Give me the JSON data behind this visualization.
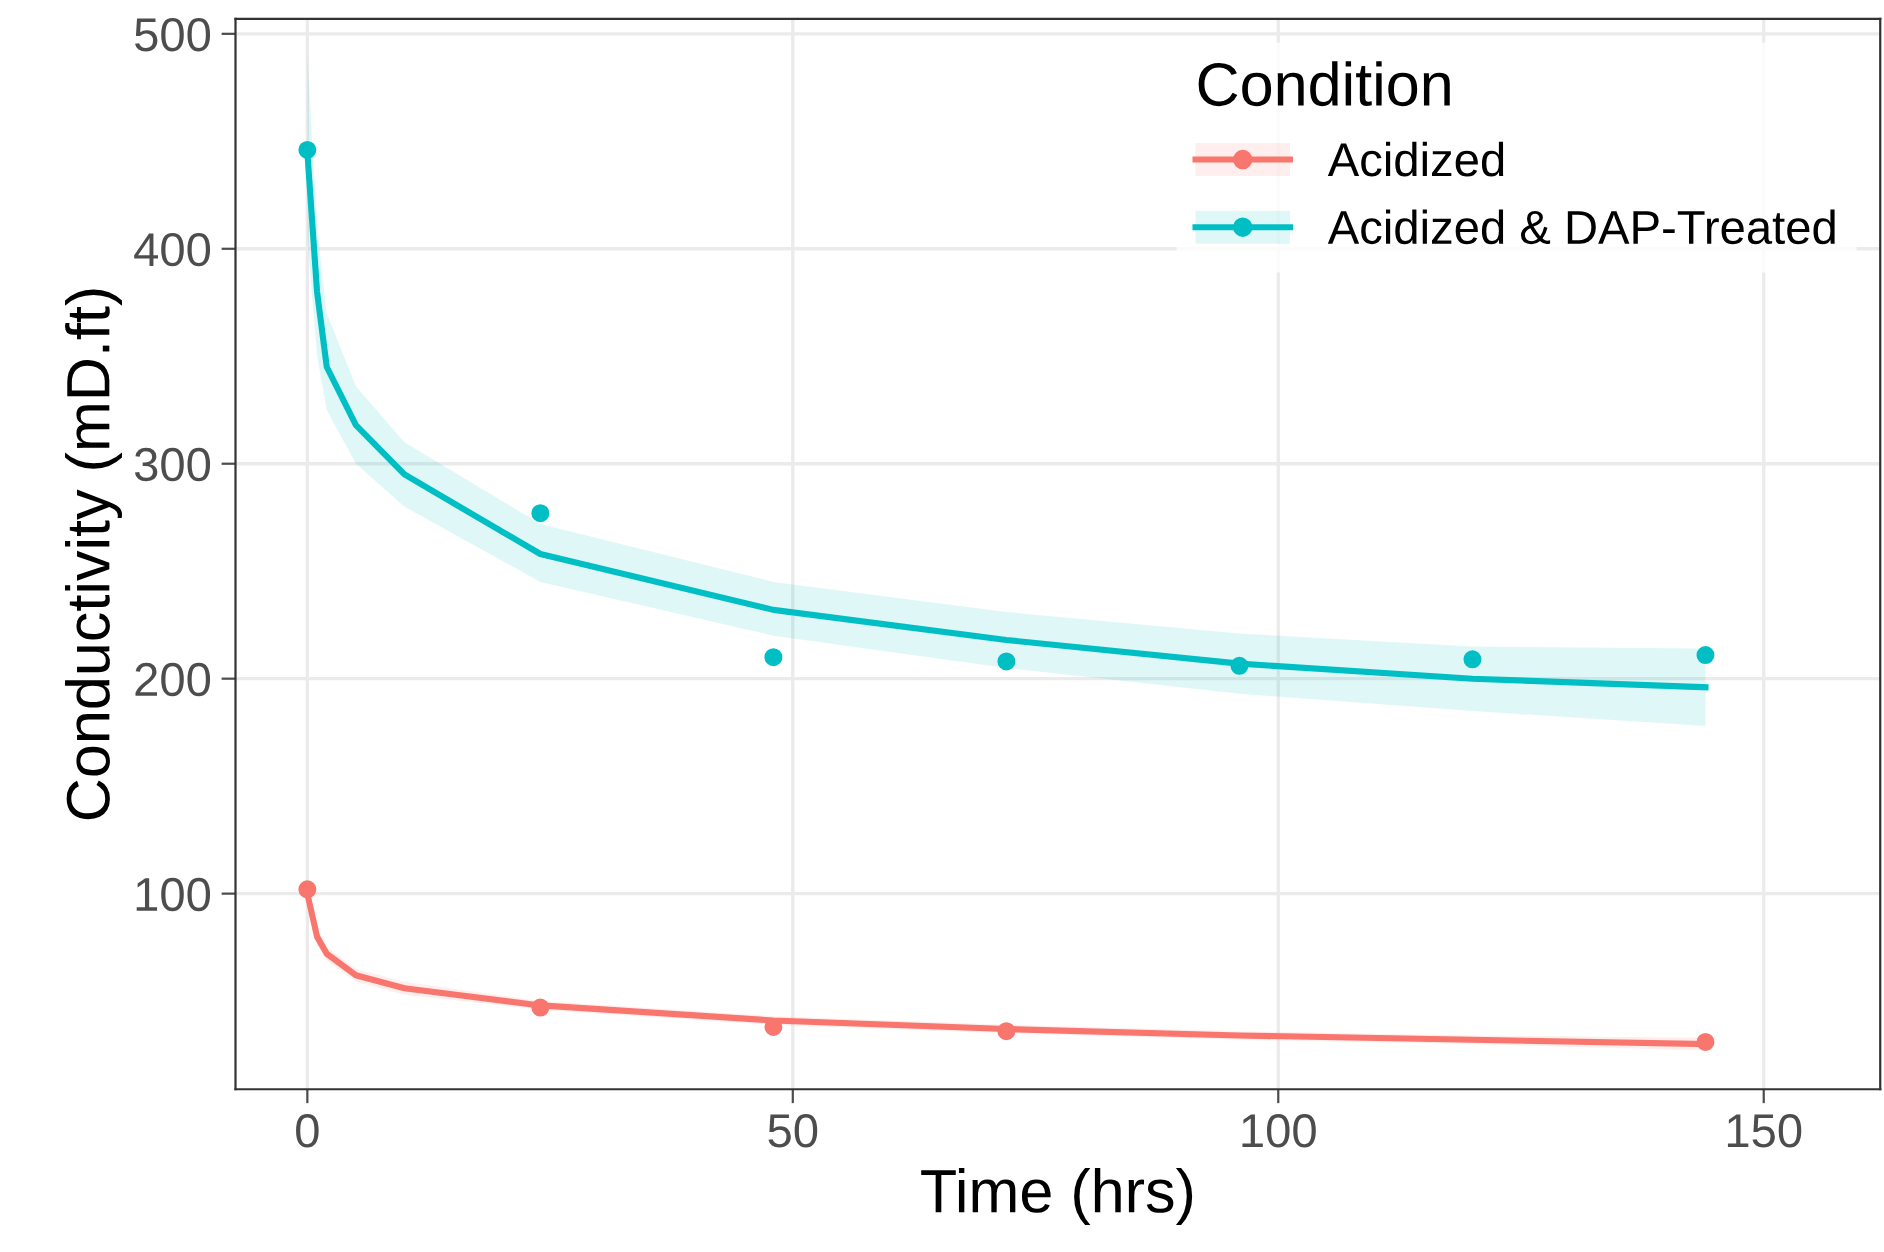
{
  "chart_data": {
    "type": "line",
    "xlabel": "Time (hrs)",
    "ylabel": "Conductivity (mD.ft)",
    "legend_title": "Condition",
    "legend": "top right",
    "grid": true,
    "xlim": [
      -7.4,
      162
    ],
    "ylim": [
      9,
      507
    ],
    "xticks": [
      0,
      50,
      100,
      150
    ],
    "yticks": [
      100,
      200,
      300,
      400,
      500
    ],
    "series": [
      {
        "name": "Acidized",
        "color": "#f8766d",
        "x": [
          0,
          1,
          2,
          5,
          10,
          24,
          48,
          72,
          96,
          120,
          144
        ],
        "values": [
          100,
          80,
          72,
          62,
          56,
          48,
          41,
          37,
          34,
          32,
          30
        ],
        "lower": [
          94,
          76,
          69,
          59,
          53,
          46,
          39,
          35,
          32,
          30,
          27
        ],
        "upper": [
          106,
          84,
          75,
          65,
          59,
          50,
          43,
          39,
          36,
          34,
          33
        ]
      },
      {
        "name": "Acidized & DAP-Treated",
        "color": "#00bfc4",
        "x": [
          0,
          1,
          2,
          5,
          10,
          24,
          48,
          72,
          96,
          120,
          144
        ],
        "values": [
          445,
          380,
          345,
          318,
          295,
          258,
          232,
          218,
          207,
          200,
          196
        ],
        "lower": [
          405,
          350,
          325,
          300,
          280,
          245,
          220,
          205,
          193,
          185,
          178
        ],
        "upper": [
          490,
          410,
          370,
          336,
          310,
          272,
          245,
          231,
          221,
          215,
          214
        ]
      },
      {
        "type": "scatter",
        "color": "#f8766d",
        "x": [
          0,
          24,
          48,
          72,
          144
        ],
        "values": [
          102,
          47,
          38,
          36,
          31
        ]
      },
      {
        "type": "scatter",
        "color": "#00bfc4",
        "x": [
          0,
          24,
          48,
          72,
          96,
          120,
          144
        ],
        "values": [
          446,
          277,
          210,
          208,
          206,
          209,
          211
        ]
      }
    ]
  }
}
